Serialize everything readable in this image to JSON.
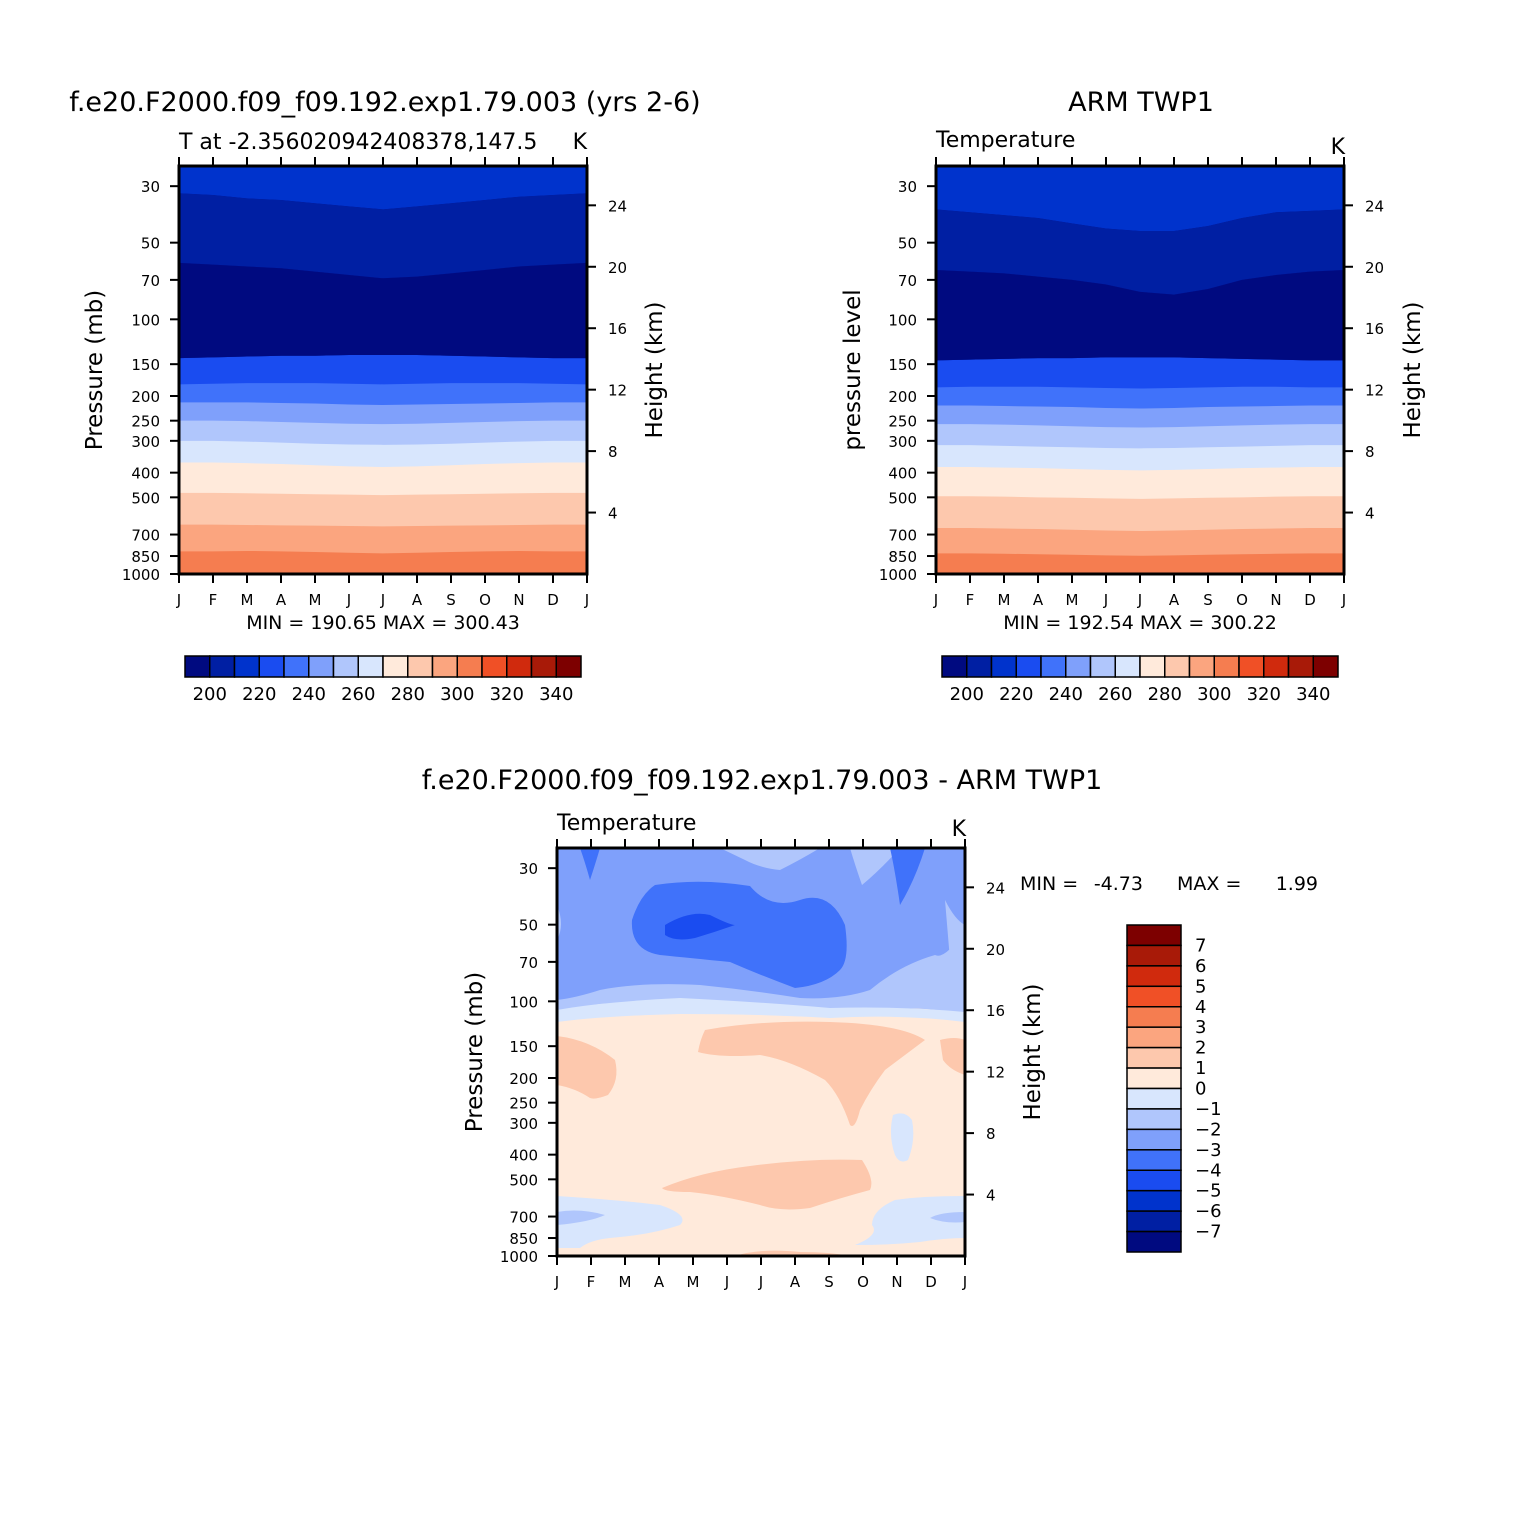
{
  "colors": {
    "abs_fills": [
      "#000a80",
      "#001fa3",
      "#0033cc",
      "#1a4cf0",
      "#4072fa",
      "#7fa0fb",
      "#b0c6fc",
      "#d8e6fd",
      "#ffeadb",
      "#fdc8ad",
      "#fba57f",
      "#f57d50",
      "#f05026",
      "#d02a0d",
      "#a81a08",
      "#7d0000"
    ],
    "diff_fills": [
      "#000a80",
      "#001fa3",
      "#0033cc",
      "#1a4cf0",
      "#4072fa",
      "#7fa0fb",
      "#b0c6fc",
      "#d8e6fd",
      "#ffeadb",
      "#fdc8ad",
      "#fba57f",
      "#f57d50",
      "#f05026",
      "#d02a0d",
      "#a81a08",
      "#7d0000"
    ]
  },
  "chart_data": [
    {
      "id": "model",
      "type": "contour",
      "title": "f.e20.F2000.f09_f09.192.exp1.79.003 (yrs 2-6)",
      "subtitle_left": "T at -2.356020942408378,147.5",
      "subtitle_right": "K",
      "ylabel": "Pressure (mb)",
      "ylabel_right": "Height (km)",
      "x_ticks": [
        "J",
        "F",
        "M",
        "A",
        "M",
        "J",
        "J",
        "A",
        "S",
        "O",
        "N",
        "D",
        "J"
      ],
      "y_ticks": [
        "30",
        "50",
        "70",
        "100",
        "150",
        "200",
        "250",
        "300",
        "400",
        "500",
        "700",
        "850",
        "1000"
      ],
      "y_ticks_right": [
        "24",
        "20",
        "16",
        "12",
        "8",
        "4"
      ],
      "stats": "MIN = 190.65 MAX = 300.43",
      "min": 190.65,
      "max": 300.43,
      "ylim": [
        1000,
        25
      ],
      "boundaries": [
        {
          "level": 190,
          "p": [
            60,
            61,
            62,
            63,
            65,
            67,
            69,
            68,
            66,
            64,
            62,
            61,
            60
          ]
        },
        {
          "level": 200,
          "p": [
            32,
            32.5,
            33.5,
            34,
            35,
            36,
            37,
            36,
            35,
            34,
            33,
            32.5,
            32
          ]
        },
        {
          "level": 210,
          "p": [
            142,
            141,
            140,
            139,
            139,
            138,
            138,
            138,
            139,
            140,
            141,
            142,
            142
          ]
        },
        {
          "level": 220,
          "p": [
            180,
            179,
            178,
            178,
            178,
            179,
            180,
            179,
            178,
            178,
            178,
            179,
            180
          ]
        },
        {
          "level": 230,
          "p": [
            212,
            212,
            212,
            213,
            214,
            216,
            217,
            216,
            215,
            214,
            213,
            212,
            212
          ]
        },
        {
          "level": 240,
          "p": [
            250,
            250,
            251,
            253,
            255,
            257,
            258,
            257,
            255,
            253,
            251,
            250,
            250
          ]
        },
        {
          "level": 250,
          "p": [
            300,
            300,
            302,
            305,
            308,
            310,
            311,
            310,
            308,
            305,
            302,
            300,
            300
          ]
        },
        {
          "level": 260,
          "p": [
            365,
            365,
            367,
            370,
            374,
            378,
            380,
            378,
            374,
            370,
            367,
            365,
            365
          ]
        },
        {
          "level": 270,
          "p": [
            480,
            480,
            482,
            484,
            486,
            488,
            490,
            488,
            486,
            484,
            482,
            480,
            480
          ]
        },
        {
          "level": 280,
          "p": [
            640,
            640,
            642,
            644,
            646,
            648,
            650,
            648,
            646,
            644,
            642,
            640,
            640
          ]
        },
        {
          "level": 290,
          "p": [
            815,
            815,
            812,
            815,
            820,
            825,
            830,
            825,
            820,
            815,
            812,
            815,
            815
          ]
        },
        {
          "level": 300,
          "p": [
            985,
            990,
            995,
            995,
            995,
            995,
            995,
            995,
            995,
            995,
            990,
            985,
            985
          ]
        }
      ],
      "colorbar_labels": [
        "200",
        "220",
        "240",
        "260",
        "280",
        "300",
        "320",
        "340"
      ]
    },
    {
      "id": "obs",
      "type": "contour",
      "title": "ARM TWP1",
      "subtitle_left": "Temperature",
      "subtitle_right": "K",
      "ylabel": "pressure level",
      "ylabel_right": "Height (km)",
      "x_ticks": [
        "J",
        "F",
        "M",
        "A",
        "M",
        "J",
        "J",
        "A",
        "S",
        "O",
        "N",
        "D",
        "J"
      ],
      "y_ticks": [
        "30",
        "50",
        "70",
        "100",
        "150",
        "200",
        "250",
        "300",
        "400",
        "500",
        "700",
        "850",
        "1000"
      ],
      "y_ticks_right": [
        "24",
        "20",
        "16",
        "12",
        "8",
        "4"
      ],
      "stats": "MIN = 192.54 MAX = 300.22",
      "min": 192.54,
      "max": 300.22,
      "ylim": [
        1000,
        25
      ],
      "boundaries": [
        {
          "level": 190,
          "p": [
            64,
            65,
            66,
            68,
            70,
            73,
            78,
            80,
            76,
            70,
            67,
            65,
            64
          ]
        },
        {
          "level": 200,
          "p": [
            37,
            38,
            39,
            40,
            42,
            44,
            45,
            45,
            43,
            40,
            38,
            37.5,
            37
          ]
        },
        {
          "level": 210,
          "p": [
            145,
            144,
            143,
            142,
            142,
            141,
            141,
            141,
            142,
            143,
            144,
            145,
            145
          ]
        },
        {
          "level": 220,
          "p": [
            185,
            184,
            184,
            184,
            185,
            186,
            187,
            186,
            185,
            184,
            184,
            185,
            185
          ]
        },
        {
          "level": 230,
          "p": [
            218,
            218,
            219,
            220,
            221,
            223,
            224,
            223,
            221,
            220,
            219,
            218,
            218
          ]
        },
        {
          "level": 240,
          "p": [
            258,
            258,
            259,
            261,
            263,
            265,
            266,
            265,
            263,
            261,
            259,
            258,
            258
          ]
        },
        {
          "level": 250,
          "p": [
            312,
            312,
            314,
            316,
            318,
            320,
            321,
            320,
            318,
            316,
            314,
            312,
            312
          ]
        },
        {
          "level": 260,
          "p": [
            380,
            380,
            382,
            384,
            387,
            390,
            392,
            390,
            387,
            384,
            382,
            380,
            380
          ]
        },
        {
          "level": 270,
          "p": [
            495,
            495,
            497,
            500,
            502,
            505,
            507,
            505,
            502,
            500,
            497,
            495,
            495
          ]
        },
        {
          "level": 280,
          "p": [
            660,
            660,
            663,
            666,
            670,
            675,
            678,
            675,
            670,
            666,
            663,
            660,
            660
          ]
        },
        {
          "level": 290,
          "p": [
            830,
            830,
            833,
            836,
            840,
            845,
            848,
            845,
            840,
            836,
            833,
            830,
            830
          ]
        }
      ],
      "colorbar_labels": [
        "200",
        "220",
        "240",
        "260",
        "280",
        "300",
        "320",
        "340"
      ]
    },
    {
      "id": "diff",
      "type": "contour",
      "title": "f.e20.F2000.f09_f09.192.exp1.79.003 - ARM TWP1",
      "subtitle_left": "Temperature",
      "subtitle_right": "K",
      "ylabel": "Pressure (mb)",
      "ylabel_right": "Height (km)",
      "x_ticks": [
        "J",
        "F",
        "M",
        "A",
        "M",
        "J",
        "J",
        "A",
        "S",
        "O",
        "N",
        "D",
        "J"
      ],
      "y_ticks": [
        "30",
        "50",
        "70",
        "100",
        "150",
        "200",
        "250",
        "300",
        "400",
        "500",
        "700",
        "850",
        "1000"
      ],
      "y_ticks_right": [
        "24",
        "20",
        "16",
        "12",
        "8",
        "4"
      ],
      "stats_min_label": "MIN =",
      "stats_min": "-4.73",
      "stats_max_label": "MAX =",
      "stats_max": "1.99",
      "min": -4.73,
      "max": 1.99,
      "ylim": [
        1000,
        25
      ],
      "colorbar_labels": [
        "7",
        "6",
        "5",
        "4",
        "3",
        "2",
        "1",
        "0",
        "−1",
        "−2",
        "−3",
        "−4",
        "−5",
        "−6",
        "−7"
      ]
    }
  ]
}
